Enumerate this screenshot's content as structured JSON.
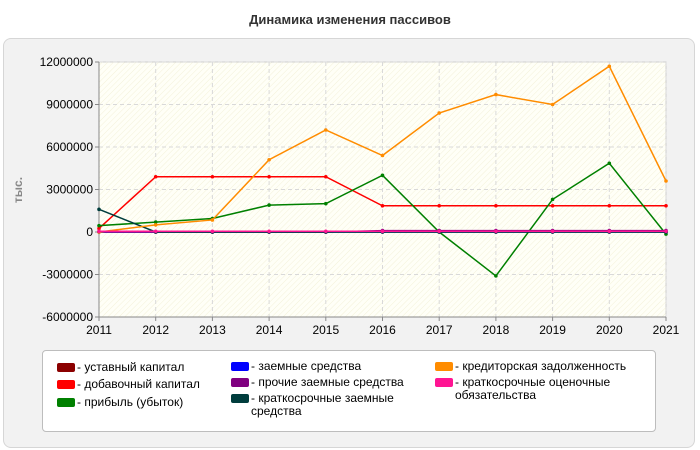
{
  "chart_data": {
    "type": "line",
    "title": "Динамика изменения пассивов",
    "ylabel": "тыс.",
    "xlabel": "",
    "x": [
      2011,
      2012,
      2013,
      2014,
      2015,
      2016,
      2017,
      2018,
      2019,
      2020,
      2021
    ],
    "ylim": [
      -6000000,
      12000000
    ],
    "y_ticks": [
      "12000000",
      "9000000",
      "6000000",
      "3000000",
      "0",
      "-3000000",
      "-6000000"
    ],
    "y_tick_values": [
      12000000,
      9000000,
      6000000,
      3000000,
      0,
      -3000000,
      -6000000
    ],
    "x_tick_labels": [
      "2011",
      "2012",
      "2013",
      "2014",
      "2015",
      "2016",
      "2017",
      "2018",
      "2019",
      "2020",
      "2021"
    ],
    "grid": true,
    "legend_position": "bottom",
    "series": [
      {
        "name": "- уставный капитал",
        "color": "#8b0000",
        "values": [
          10000,
          10000,
          10000,
          10000,
          10000,
          10000,
          10000,
          10000,
          10000,
          10000,
          10000
        ]
      },
      {
        "name": "- добавочный капитал",
        "color": "#ff0000",
        "values": [
          250000,
          3900000,
          3900000,
          3900000,
          3900000,
          1850000,
          1850000,
          1850000,
          1850000,
          1850000,
          1850000
        ]
      },
      {
        "name": "- прибыль (убыток)",
        "color": "#008000",
        "values": [
          450000,
          700000,
          950000,
          1900000,
          2000000,
          4000000,
          0,
          -3100000,
          2300000,
          4850000,
          -150000
        ]
      },
      {
        "name": "- заемные средства",
        "color": "#0000ff",
        "values": [
          0,
          0,
          0,
          0,
          0,
          0,
          0,
          0,
          0,
          0,
          0
        ]
      },
      {
        "name": "- прочие заемные средства",
        "color": "#800080",
        "values": [
          0,
          0,
          0,
          0,
          0,
          100000,
          100000,
          100000,
          100000,
          100000,
          100000
        ]
      },
      {
        "name": "- краткосрочные заемные средства",
        "color": "#003d3d",
        "values": [
          1600000,
          0,
          0,
          0,
          0,
          0,
          0,
          0,
          0,
          0,
          0
        ]
      },
      {
        "name": "- кредиторская задолженность",
        "color": "#ff8c00",
        "values": [
          0,
          500000,
          850000,
          5100000,
          7200000,
          5400000,
          8400000,
          9700000,
          9000000,
          11700000,
          3600000
        ]
      },
      {
        "name": "- краткосрочные оценочные обязательства",
        "color": "#ff1493",
        "values": [
          50000,
          50000,
          50000,
          50000,
          50000,
          50000,
          50000,
          50000,
          50000,
          50000,
          50000
        ]
      }
    ]
  }
}
